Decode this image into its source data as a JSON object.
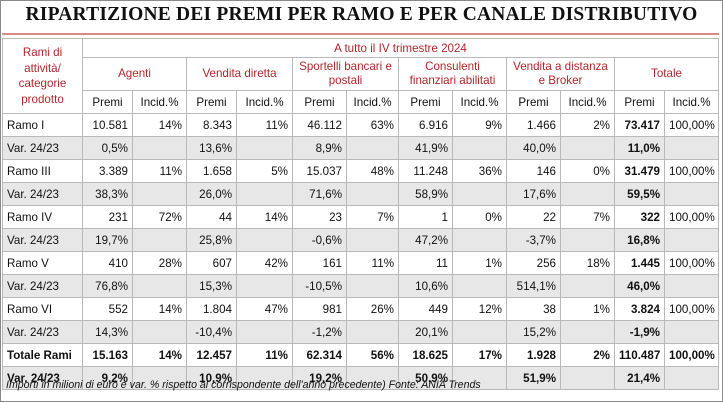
{
  "title": "RIPARTIZIONE DEI PREMI PER RAMO E PER CANALE DISTRIBUTIVO",
  "header": {
    "row_label": "Rami di attività/ categorie prodotto",
    "period": "A tutto il IV trimestre 2024",
    "channels": [
      "Agenti",
      "Vendita diretta",
      "Sportelli bancari e postali",
      "Consulenti finanziari abilitati",
      "Vendita a distanza e Broker",
      "Totale"
    ],
    "sub_premi": "Premi",
    "sub_incid": "Incid.%"
  },
  "rows": [
    {
      "label": "Ramo I",
      "cells": [
        "10.581",
        "14%",
        "8.343",
        "11%",
        "46.112",
        "63%",
        "6.916",
        "9%",
        "1.466",
        "2%",
        "73.417",
        "100,00%"
      ]
    },
    {
      "label": "Var. 24/23",
      "cells": [
        "0,5%",
        "",
        "13,6%",
        "",
        "8,9%",
        "",
        "41,9%",
        "",
        "40,0%",
        "",
        "11,0%",
        ""
      ]
    },
    {
      "label": "Ramo III",
      "cells": [
        "3.389",
        "11%",
        "1.658",
        "5%",
        "15.037",
        "48%",
        "11.248",
        "36%",
        "146",
        "0%",
        "31.479",
        "100,00%"
      ]
    },
    {
      "label": "Var. 24/23",
      "cells": [
        "38,3%",
        "",
        "26,0%",
        "",
        "71,6%",
        "",
        "58,9%",
        "",
        "17,6%",
        "",
        "59,5%",
        ""
      ]
    },
    {
      "label": "Ramo IV",
      "cells": [
        "231",
        "72%",
        "44",
        "14%",
        "23",
        "7%",
        "1",
        "0%",
        "22",
        "7%",
        "322",
        "100,00%"
      ]
    },
    {
      "label": "Var. 24/23",
      "cells": [
        "19,7%",
        "",
        "25,8%",
        "",
        "-0,6%",
        "",
        "47,2%",
        "",
        "-3,7%",
        "",
        "16,8%",
        ""
      ]
    },
    {
      "label": "Ramo V",
      "cells": [
        "410",
        "28%",
        "607",
        "42%",
        "161",
        "11%",
        "11",
        "1%",
        "256",
        "18%",
        "1.445",
        "100,00%"
      ]
    },
    {
      "label": "Var. 24/23",
      "cells": [
        "76,8%",
        "",
        "15,3%",
        "",
        "-10,5%",
        "",
        "10,6%",
        "",
        "514,1%",
        "",
        "46,0%",
        ""
      ]
    },
    {
      "label": "Ramo VI",
      "cells": [
        "552",
        "14%",
        "1.804",
        "47%",
        "981",
        "26%",
        "449",
        "12%",
        "38",
        "1%",
        "3.824",
        "100,00%"
      ]
    },
    {
      "label": "Var. 24/23",
      "cells": [
        "14,3%",
        "",
        "-10,4%",
        "",
        "-1,2%",
        "",
        "20,1%",
        "",
        "15,2%",
        "",
        "-1,9%",
        ""
      ]
    },
    {
      "label": "Totale Rami",
      "cells": [
        "15.163",
        "14%",
        "12.457",
        "11%",
        "62.314",
        "56%",
        "18.625",
        "17%",
        "1.928",
        "2%",
        "110.487",
        "100,00%"
      ]
    },
    {
      "label": "Var. 24/23",
      "cells": [
        "9,2%",
        "",
        "10,9%",
        "",
        "19,2%",
        "",
        "50,9%",
        "",
        "51,9%",
        "",
        "21,4%",
        ""
      ]
    }
  ],
  "note": "Importi in milioni di euro e var. % rispetto al corrispondente dell'anno precedente) Fonte: ANIA Trends",
  "colors": {
    "header_red": "#b5262b",
    "alt_row": "#e7e7e7",
    "title_rule": "#d98a86",
    "grid": "#b9b9b9"
  }
}
